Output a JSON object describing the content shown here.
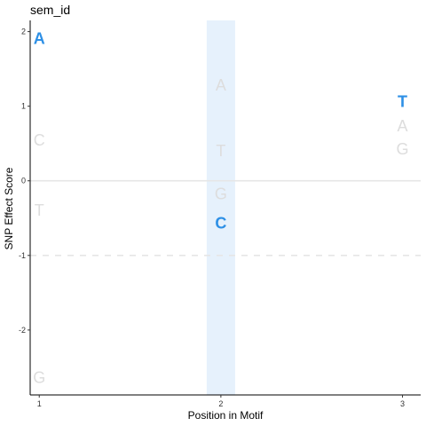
{
  "chart_data": {
    "type": "scatter",
    "title": "sem_id",
    "xlabel": "Position in Motif",
    "ylabel": "SNP Effect Score",
    "xlim": [
      0.95,
      3.1
    ],
    "ylim": [
      -2.87,
      2.15
    ],
    "xticks": [
      "1",
      "2",
      "3"
    ],
    "yticks": [
      "-2",
      "-1",
      "0",
      "1",
      "2"
    ],
    "highlight_position": 2,
    "highlight_color": "#e6f1fc",
    "reference_line_y": 0,
    "threshold_line_y": -1,
    "colors": {
      "reference": "#e6e6e6",
      "highlight_letter": "#2e90e6",
      "faded_letter": "#dddddd"
    },
    "points": [
      {
        "x": 1,
        "y": 1.91,
        "letter": "A",
        "emphasis": true
      },
      {
        "x": 1,
        "y": 0.55,
        "letter": "C",
        "emphasis": false
      },
      {
        "x": 1,
        "y": -0.39,
        "letter": "T",
        "emphasis": false
      },
      {
        "x": 1,
        "y": -2.63,
        "letter": "G",
        "emphasis": false
      },
      {
        "x": 2,
        "y": 1.29,
        "letter": "A",
        "emphasis": false
      },
      {
        "x": 2,
        "y": 0.41,
        "letter": "T",
        "emphasis": false
      },
      {
        "x": 2,
        "y": -0.17,
        "letter": "G",
        "emphasis": false
      },
      {
        "x": 2,
        "y": -0.56,
        "letter": "C",
        "emphasis": true
      },
      {
        "x": 3,
        "y": 1.07,
        "letter": "T",
        "emphasis": true
      },
      {
        "x": 3,
        "y": 0.74,
        "letter": "A",
        "emphasis": false
      },
      {
        "x": 3,
        "y": 0.43,
        "letter": "G",
        "emphasis": false
      }
    ]
  }
}
